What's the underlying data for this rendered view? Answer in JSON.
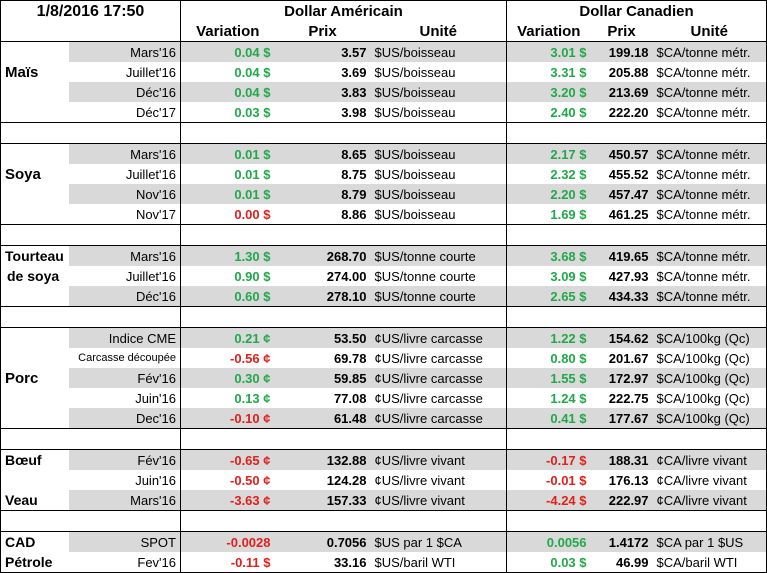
{
  "header": {
    "datetime": "1/8/2016 17:50",
    "usd_title": "Dollar Américain",
    "cad_title": "Dollar Canadien",
    "col_variation": "Variation",
    "col_prix": "Prix",
    "col_unite": "Unité"
  },
  "groups": [
    {
      "label_lines": [
        "Maïs"
      ],
      "label_row": 1,
      "rows": [
        {
          "contract": "Mars'16",
          "usd_var": "0.04 $",
          "usd_sign": "pos",
          "usd_price": "3.57",
          "usd_unit": "$US/boisseau",
          "cad_var": "3.01 $",
          "cad_sign": "pos",
          "cad_price": "199.18",
          "cad_unit": "$CA/tonne métr."
        },
        {
          "contract": "Juillet'16",
          "usd_var": "0.04 $",
          "usd_sign": "pos",
          "usd_price": "3.69",
          "usd_unit": "$US/boisseau",
          "cad_var": "3.31 $",
          "cad_sign": "pos",
          "cad_price": "205.88",
          "cad_unit": "$CA/tonne métr."
        },
        {
          "contract": "Déc'16",
          "usd_var": "0.04 $",
          "usd_sign": "pos",
          "usd_price": "3.83",
          "usd_unit": "$US/boisseau",
          "cad_var": "3.20 $",
          "cad_sign": "pos",
          "cad_price": "213.69",
          "cad_unit": "$CA/tonne métr."
        },
        {
          "contract": "Déc'17",
          "usd_var": "0.03 $",
          "usd_sign": "pos",
          "usd_price": "3.98",
          "usd_unit": "$US/boisseau",
          "cad_var": "2.40 $",
          "cad_sign": "pos",
          "cad_price": "222.20",
          "cad_unit": "$CA/tonne métr."
        }
      ]
    },
    {
      "label_lines": [
        "Soya"
      ],
      "label_row": 1,
      "rows": [
        {
          "contract": "Mars'16",
          "usd_var": "0.01 $",
          "usd_sign": "pos",
          "usd_price": "8.65",
          "usd_unit": "$US/boisseau",
          "cad_var": "2.17 $",
          "cad_sign": "pos",
          "cad_price": "450.57",
          "cad_unit": "$CA/tonne métr."
        },
        {
          "contract": "Juillet'16",
          "usd_var": "0.01 $",
          "usd_sign": "pos",
          "usd_price": "8.75",
          "usd_unit": "$US/boisseau",
          "cad_var": "2.32 $",
          "cad_sign": "pos",
          "cad_price": "455.52",
          "cad_unit": "$CA/tonne métr."
        },
        {
          "contract": "Nov'16",
          "usd_var": "0.01 $",
          "usd_sign": "pos",
          "usd_price": "8.79",
          "usd_unit": "$US/boisseau",
          "cad_var": "2.20 $",
          "cad_sign": "pos",
          "cad_price": "457.47",
          "cad_unit": "$CA/tonne métr."
        },
        {
          "contract": "Nov'17",
          "usd_var": "0.00 $",
          "usd_sign": "neg",
          "usd_price": "8.86",
          "usd_unit": "$US/boisseau",
          "cad_var": "1.69 $",
          "cad_sign": "pos",
          "cad_price": "461.25",
          "cad_unit": "$CA/tonne métr."
        }
      ]
    },
    {
      "label_lines": [
        "Tourteau",
        "de soya"
      ],
      "label_row": 0,
      "rows": [
        {
          "contract": "Mars'16",
          "usd_var": "1.30 $",
          "usd_sign": "pos",
          "usd_price": "268.70",
          "usd_unit": "$US/tonne courte",
          "cad_var": "3.68 $",
          "cad_sign": "pos",
          "cad_price": "419.65",
          "cad_unit": "$CA/tonne métr."
        },
        {
          "contract": "Juillet'16",
          "usd_var": "0.90 $",
          "usd_sign": "pos",
          "usd_price": "274.00",
          "usd_unit": "$US/tonne courte",
          "cad_var": "3.09 $",
          "cad_sign": "pos",
          "cad_price": "427.93",
          "cad_unit": "$CA/tonne métr."
        },
        {
          "contract": "Déc'16",
          "usd_var": "0.60 $",
          "usd_sign": "pos",
          "usd_price": "278.10",
          "usd_unit": "$US/tonne courte",
          "cad_var": "2.65 $",
          "cad_sign": "pos",
          "cad_price": "434.33",
          "cad_unit": "$CA/tonne métr."
        }
      ]
    },
    {
      "label_lines": [
        "Porc"
      ],
      "label_row": 2,
      "rows": [
        {
          "contract": "Indice CME",
          "usd_var": "0.21 ¢",
          "usd_sign": "pos",
          "usd_price": "53.50",
          "usd_unit": "¢US/livre carcasse",
          "cad_var": "1.22 $",
          "cad_sign": "pos",
          "cad_price": "154.62",
          "cad_unit": "$CA/100kg (Qc)"
        },
        {
          "contract": "Carcasse découpée",
          "usd_var": "-0.56 ¢",
          "usd_sign": "neg",
          "usd_price": "69.78",
          "usd_unit": "¢US/livre carcasse",
          "cad_var": "0.80 $",
          "cad_sign": "pos",
          "cad_price": "201.67",
          "cad_unit": "$CA/100kg (Qc)"
        },
        {
          "contract": "Fév'16",
          "usd_var": "0.30 ¢",
          "usd_sign": "pos",
          "usd_price": "59.85",
          "usd_unit": "¢US/livre carcasse",
          "cad_var": "1.55 $",
          "cad_sign": "pos",
          "cad_price": "172.97",
          "cad_unit": "$CA/100kg (Qc)"
        },
        {
          "contract": "Juin'16",
          "usd_var": "0.13 ¢",
          "usd_sign": "pos",
          "usd_price": "77.08",
          "usd_unit": "¢US/livre carcasse",
          "cad_var": "1.24 $",
          "cad_sign": "pos",
          "cad_price": "222.75",
          "cad_unit": "$CA/100kg (Qc)"
        },
        {
          "contract": "Dec'16",
          "usd_var": "-0.10 ¢",
          "usd_sign": "neg",
          "usd_price": "61.48",
          "usd_unit": "¢US/livre carcasse",
          "cad_var": "0.41 $",
          "cad_sign": "pos",
          "cad_price": "177.67",
          "cad_unit": "$CA/100kg (Qc)"
        }
      ]
    },
    {
      "label_lines": [
        "Bœuf"
      ],
      "label_row": 0,
      "second_label": "Veau",
      "second_label_row": 2,
      "rows": [
        {
          "contract": "Fév'16",
          "usd_var": "-0.65 ¢",
          "usd_sign": "neg",
          "usd_price": "132.88",
          "usd_unit": "¢US/livre vivant",
          "cad_var": "-0.17 $",
          "cad_sign": "neg",
          "cad_price": "188.31",
          "cad_unit": "¢CA/livre vivant"
        },
        {
          "contract": "Juin'16",
          "usd_var": "-0.50 ¢",
          "usd_sign": "neg",
          "usd_price": "124.28",
          "usd_unit": "¢US/livre vivant",
          "cad_var": "-0.01 $",
          "cad_sign": "neg",
          "cad_price": "176.13",
          "cad_unit": "¢CA/livre vivant"
        },
        {
          "contract": "Mars'16",
          "usd_var": "-3.63 ¢",
          "usd_sign": "neg",
          "usd_price": "157.33",
          "usd_unit": "¢US/livre vivant",
          "cad_var": "-4.24 $",
          "cad_sign": "neg",
          "cad_price": "222.97",
          "cad_unit": "¢CA/livre vivant"
        }
      ]
    },
    {
      "label_lines": [
        "CAD"
      ],
      "label_row": 0,
      "second_label": "Pétrole",
      "second_label_row": 1,
      "rows": [
        {
          "contract": "SPOT",
          "usd_var": "-0.0028",
          "usd_sign": "neg",
          "usd_price": "0.7056",
          "usd_unit": "$US par 1 $CA",
          "cad_var": "0.0056",
          "cad_sign": "pos",
          "cad_price": "1.4172",
          "cad_unit": "$CA par 1 $US"
        },
        {
          "contract": "Fev'16",
          "usd_var": "-0.11 $",
          "usd_sign": "neg",
          "usd_price": "33.16",
          "usd_unit": "$US/baril WTI",
          "cad_var": "0.03 $",
          "cad_sign": "pos",
          "cad_price": "46.99",
          "cad_unit": "$CA/baril WTI"
        }
      ]
    }
  ]
}
